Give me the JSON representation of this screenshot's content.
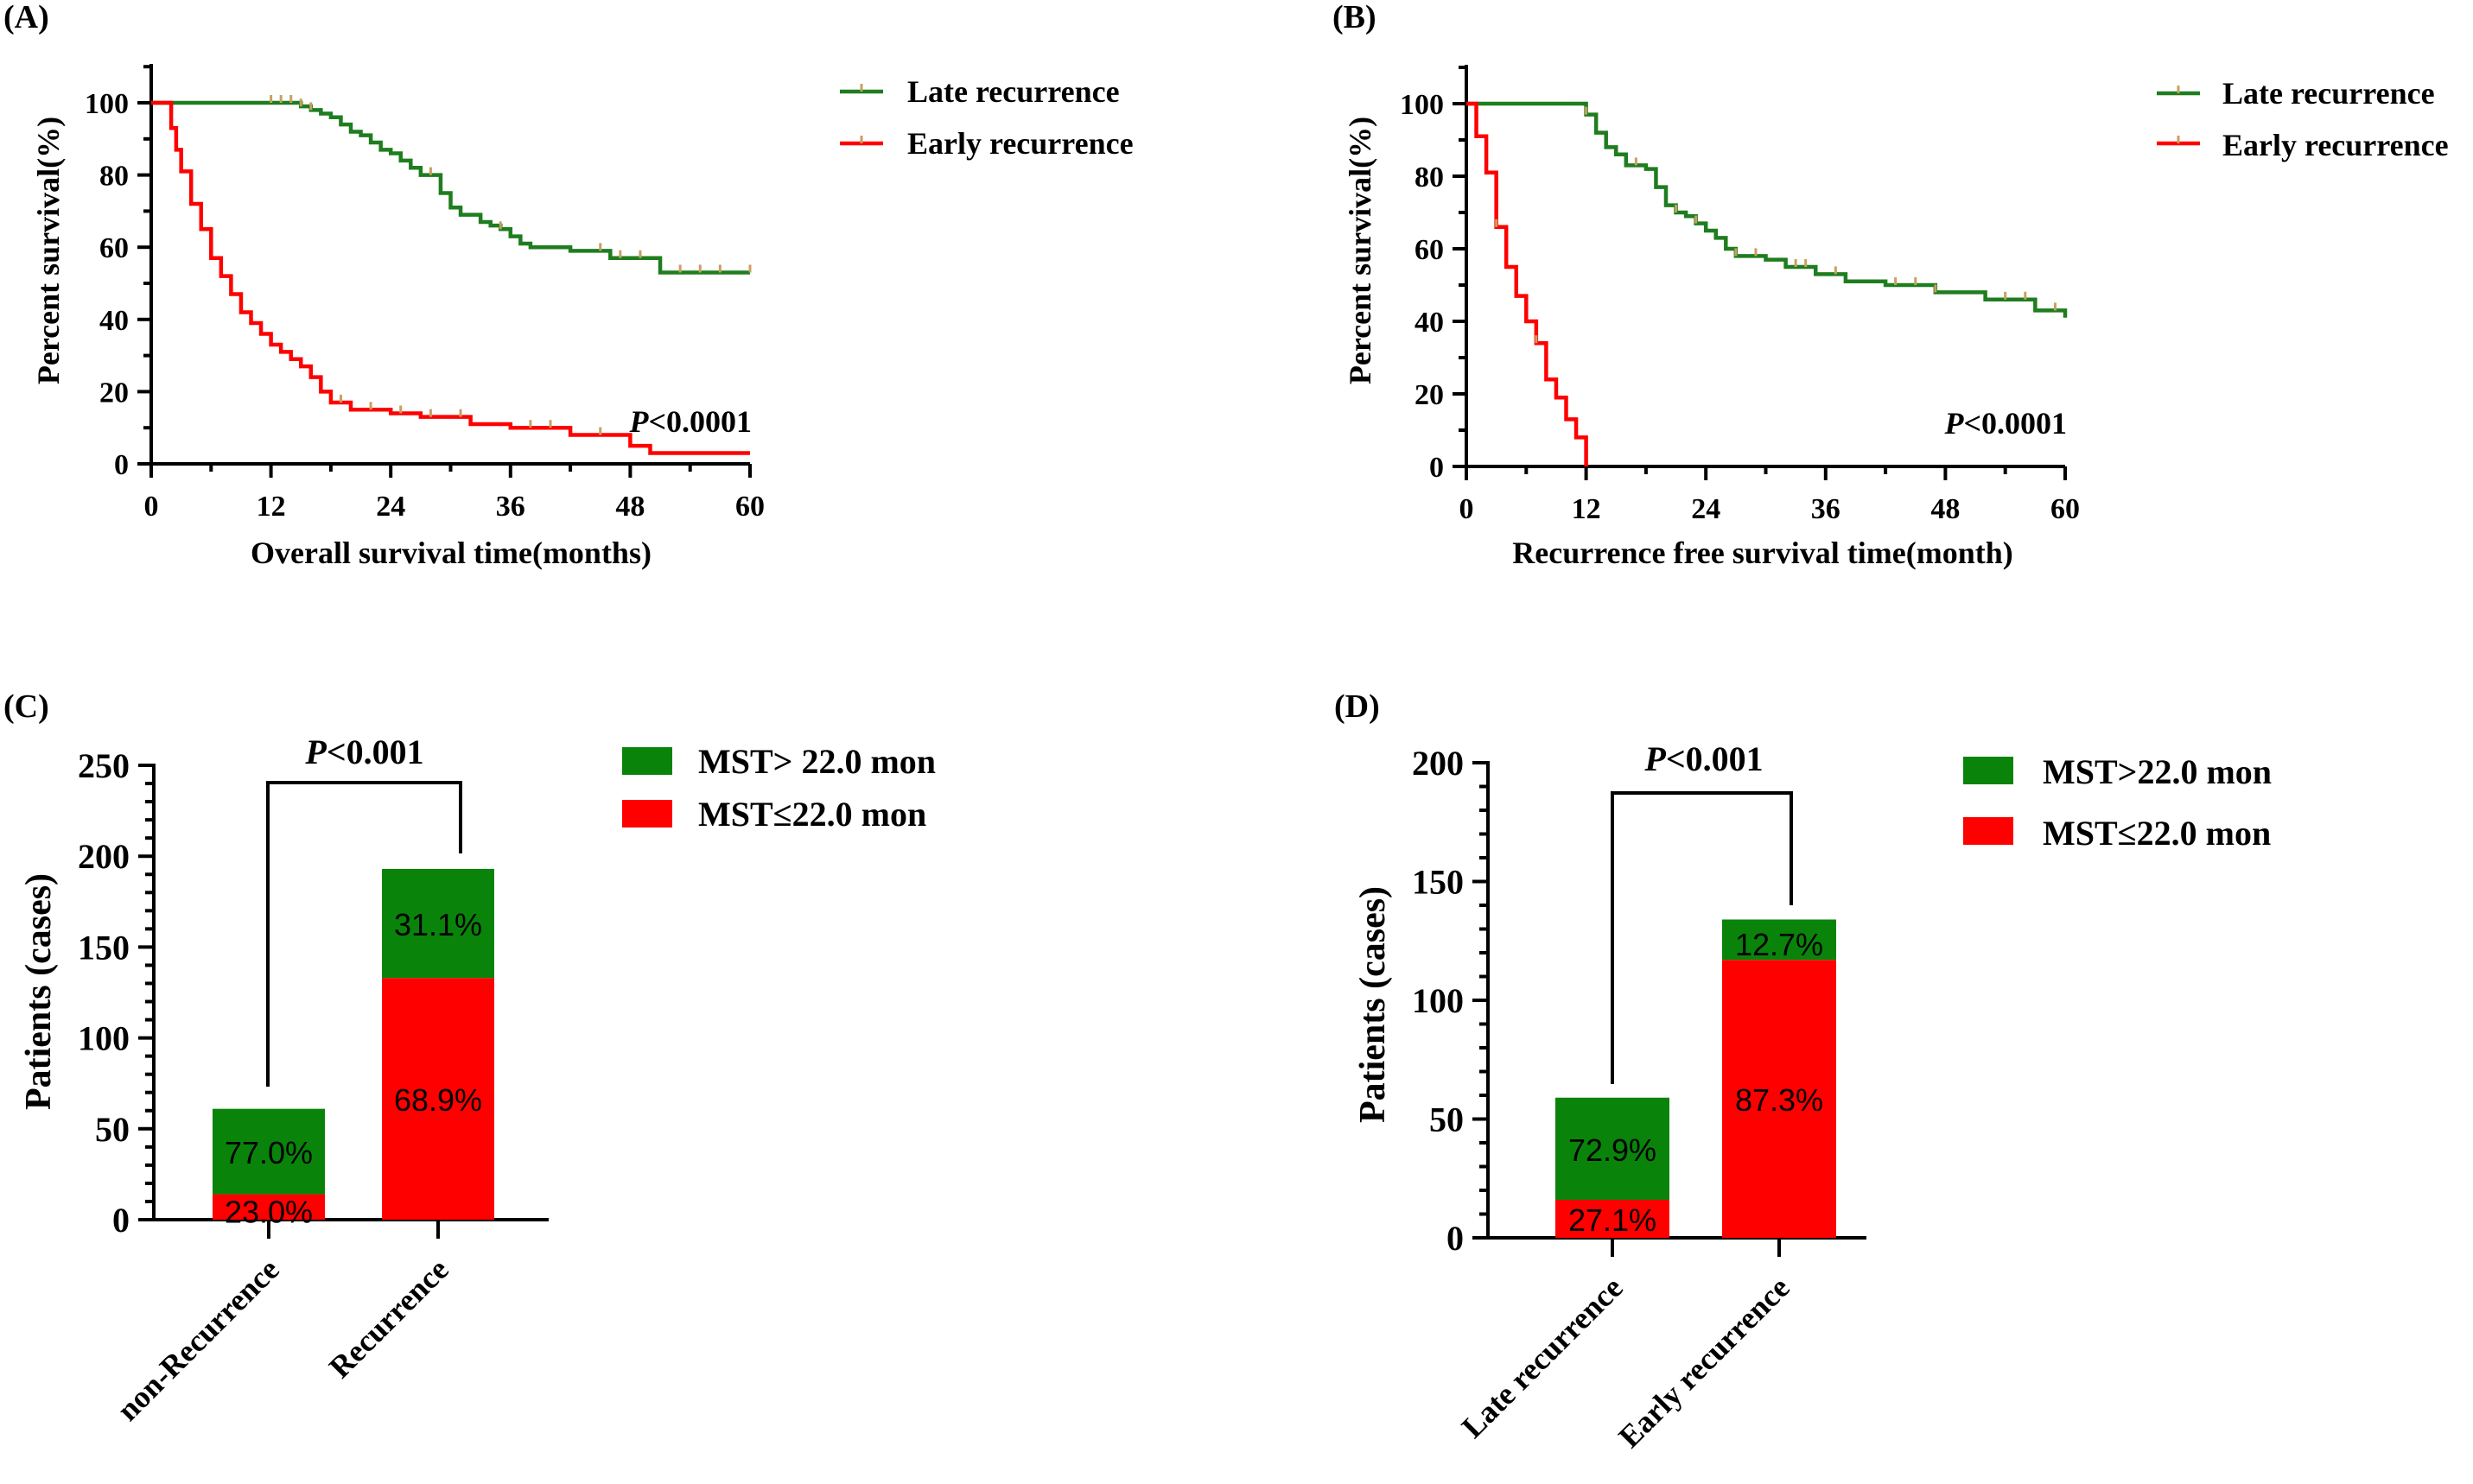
{
  "colors": {
    "green": "#1e7d1e",
    "red": "#ff0000",
    "bar_green": "#0a830a",
    "censor": "#c8a060"
  },
  "chart_data": [
    {
      "panel": "(A)",
      "type": "line",
      "subtype": "kaplan-meier",
      "xlabel": "Overall survival time(months)",
      "ylabel": "Percent survival(%)",
      "xlim": [
        0,
        60
      ],
      "ylim": [
        0,
        100
      ],
      "xticks": [
        0,
        12,
        24,
        36,
        48,
        60
      ],
      "yticks": [
        0,
        20,
        40,
        60,
        80,
        100
      ],
      "p_italic": "P",
      "p_rest": "<0.0001",
      "legend": [
        "Late recurrence",
        "Early recurrence"
      ],
      "series": [
        {
          "name": "Late recurrence",
          "color": "#1e7d1e",
          "x": [
            0,
            15,
            16,
            17,
            18,
            19,
            20,
            21,
            22,
            23,
            24,
            25,
            26,
            27,
            29,
            30,
            31,
            33,
            34,
            35,
            36,
            37,
            38,
            42,
            46,
            51,
            60
          ],
          "y": [
            100,
            99,
            98,
            97,
            96,
            94,
            92,
            91,
            89,
            87,
            86,
            84,
            82,
            80,
            75,
            71,
            69,
            67,
            66,
            65,
            63,
            61,
            60,
            59,
            57,
            53,
            53
          ],
          "censor_x": [
            12,
            13,
            14,
            15,
            16,
            28,
            35,
            45,
            47,
            49,
            53,
            55,
            57,
            60
          ]
        },
        {
          "name": "Early recurrence",
          "color": "#ff0000",
          "x": [
            0,
            2,
            2.5,
            3,
            4,
            5,
            6,
            7,
            8,
            9,
            10,
            11,
            12,
            13,
            14,
            15,
            16,
            17,
            18,
            20,
            24,
            27,
            32,
            36,
            42,
            48,
            50,
            60
          ],
          "y": [
            100,
            93,
            87,
            81,
            72,
            65,
            57,
            52,
            47,
            42,
            39,
            36,
            33,
            31,
            29,
            27,
            24,
            20,
            17,
            15,
            14,
            13,
            11,
            10,
            8,
            5,
            3,
            3
          ],
          "censor_x": [
            19,
            22,
            25,
            28,
            31,
            38,
            40,
            45
          ]
        }
      ]
    },
    {
      "panel": "(B)",
      "type": "line",
      "subtype": "kaplan-meier",
      "xlabel": "Recurrence free survival time(month)",
      "ylabel": "Percent survival(%)",
      "xlim": [
        0,
        60
      ],
      "ylim": [
        0,
        100
      ],
      "xticks": [
        0,
        12,
        24,
        36,
        48,
        60
      ],
      "yticks": [
        0,
        20,
        40,
        60,
        80,
        100
      ],
      "p_italic": "P",
      "p_rest": "<0.0001",
      "legend": [
        "Late recurrence",
        "Early recurrence"
      ],
      "series": [
        {
          "name": "Late recurrence",
          "color": "#1e7d1e",
          "x": [
            0,
            12,
            13,
            14,
            15,
            16,
            18,
            19,
            20,
            21,
            22,
            23,
            24,
            25,
            26,
            27,
            30,
            32,
            35,
            38,
            42,
            47,
            52,
            57,
            60
          ],
          "y": [
            100,
            97,
            92,
            88,
            86,
            83,
            82,
            77,
            72,
            70,
            69,
            67,
            65,
            63,
            60,
            58,
            57,
            55,
            53,
            51,
            50,
            48,
            46,
            43,
            41
          ],
          "censor_x": [
            12,
            17,
            21,
            23,
            27,
            29,
            33,
            34,
            37,
            43,
            45,
            47,
            54,
            56,
            59
          ]
        },
        {
          "name": "Early recurrence",
          "color": "#ff0000",
          "x": [
            0,
            1,
            2,
            3,
            4,
            5,
            6,
            7,
            8,
            9,
            10,
            11,
            12
          ],
          "y": [
            100,
            91,
            81,
            66,
            55,
            47,
            40,
            34,
            24,
            19,
            13,
            8,
            0
          ],
          "censor_x": [
            3,
            7
          ]
        }
      ]
    },
    {
      "panel": "(C)",
      "type": "bar",
      "subtype": "stacked",
      "ylabel": "Patients (cases)",
      "ylim": [
        0,
        250
      ],
      "yticks": [
        0,
        50,
        100,
        150,
        200,
        250
      ],
      "categories": [
        "non-Recurrence",
        "Recurrence"
      ],
      "series": [
        {
          "name": "MST≤22.0 mon",
          "color": "#ff0000",
          "values": [
            14,
            133
          ],
          "labels": [
            "23.0%",
            "68.9%"
          ]
        },
        {
          "name": "MST> 22.0 mon",
          "color": "#0a830a",
          "values": [
            47,
            60
          ],
          "labels": [
            "77.0%",
            "31.1%"
          ]
        }
      ],
      "legend": [
        "MST> 22.0 mon",
        "MST≤22.0 mon"
      ],
      "p_italic": "P",
      "p_rest": "<0.001"
    },
    {
      "panel": "(D)",
      "type": "bar",
      "subtype": "stacked",
      "ylabel": "Patients (cases)",
      "ylim": [
        0,
        200
      ],
      "yticks": [
        0,
        50,
        100,
        150,
        200
      ],
      "categories": [
        "Late recurrence",
        "Early recurrence"
      ],
      "series": [
        {
          "name": "MST≤22.0 mon",
          "color": "#ff0000",
          "values": [
            16,
            117
          ],
          "labels": [
            "27.1%",
            "87.3%"
          ]
        },
        {
          "name": "MST>22.0 mon",
          "color": "#0a830a",
          "values": [
            43,
            17
          ],
          "labels": [
            "72.9%",
            "12.7%"
          ]
        }
      ],
      "legend": [
        "MST>22.0 mon",
        "MST≤22.0 mon"
      ],
      "p_italic": "P",
      "p_rest": "<0.001"
    }
  ]
}
